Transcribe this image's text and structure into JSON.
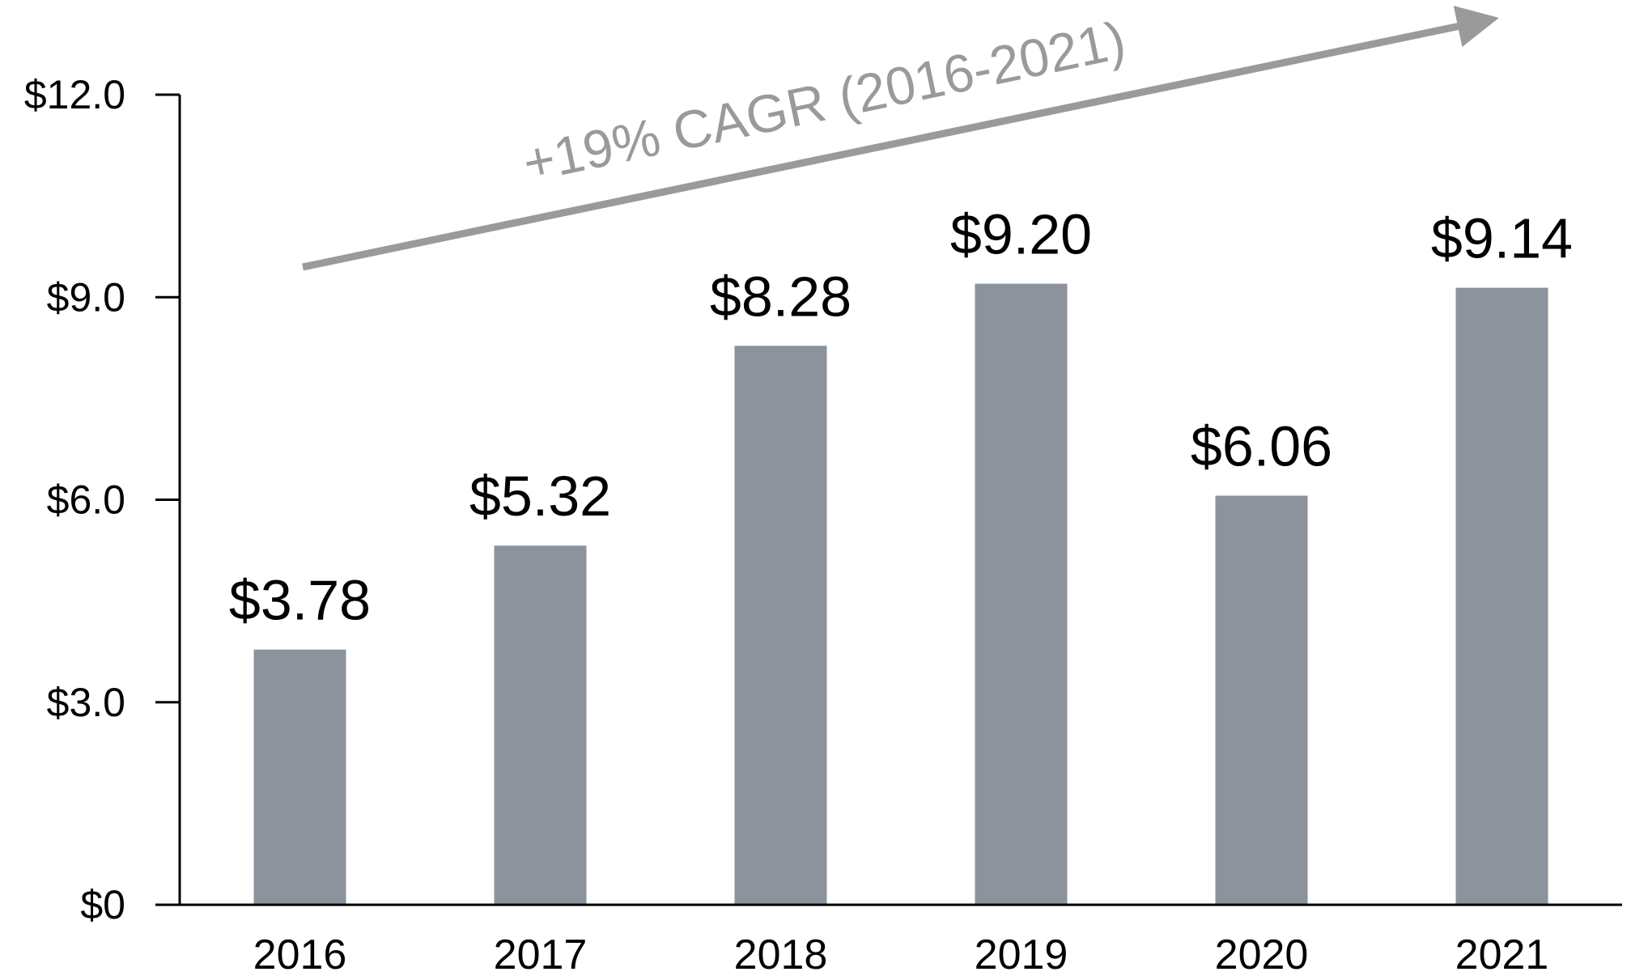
{
  "chart_data": {
    "type": "bar",
    "categories": [
      "2016",
      "2017",
      "2018",
      "2019",
      "2020",
      "2021"
    ],
    "values": [
      3.78,
      5.32,
      8.28,
      9.2,
      6.06,
      9.14
    ],
    "data_labels": [
      "$3.78",
      "$5.32",
      "$8.28",
      "$9.20",
      "$6.06",
      "$9.14"
    ],
    "y_ticks": [
      0,
      3,
      6,
      9,
      12
    ],
    "y_tick_labels": [
      "$0",
      "$3.0",
      "$6.0",
      "$9.0",
      "$12.0"
    ],
    "ylim": [
      0,
      12
    ],
    "title": "",
    "xlabel": "",
    "ylabel": "",
    "grid": false,
    "bar_color": "#8c939d",
    "annotation": {
      "text": "+19% CAGR (2016-2021)",
      "color": "#9a9a9a",
      "from_category": "2016",
      "to_category": "2021"
    }
  }
}
